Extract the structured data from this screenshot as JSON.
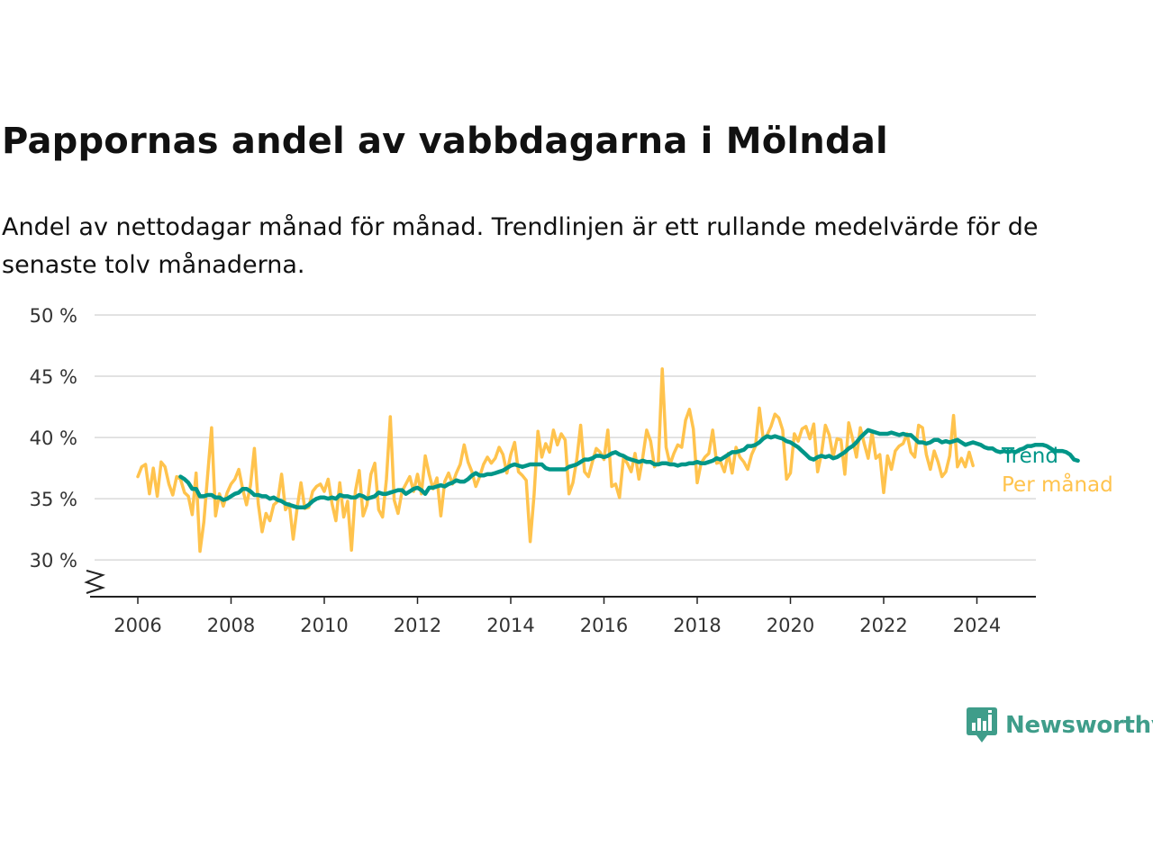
{
  "title": "Pappornas andel av vabbdagarna i Mölndal",
  "subtitle": "Andel av nettodagar månad för månad. Trendlinjen är ett rullande medelvärde för de senaste tolv månaderna.",
  "brand": {
    "name": "Newsworthy",
    "color": "#3f9d8a"
  },
  "chart_data": {
    "type": "line",
    "ylim": [
      27,
      50
    ],
    "xlim": [
      "2005-07",
      "2025-01"
    ],
    "y_ticks": [
      {
        "value": 30,
        "label": "30 %"
      },
      {
        "value": 35,
        "label": "35 %"
      },
      {
        "value": 40,
        "label": "40 %"
      },
      {
        "value": 45,
        "label": "45 %"
      },
      {
        "value": 50,
        "label": "50 %"
      }
    ],
    "x_ticks": [
      "2006",
      "2008",
      "2010",
      "2012",
      "2014",
      "2016",
      "2018",
      "2020",
      "2022",
      "2024"
    ],
    "grid": true,
    "axis_break": true,
    "legend": "direct-labels-right",
    "series": [
      {
        "name": "Per månad",
        "color": "#ffc34d",
        "start": "2006-01",
        "values": [
          36.8,
          37.6,
          37.8,
          35.4,
          37.5,
          35.2,
          38.0,
          37.6,
          36.2,
          35.3,
          36.8,
          36.6,
          35.5,
          35.2,
          33.7,
          37.1,
          30.7,
          33.1,
          37.0,
          40.8,
          33.6,
          35.4,
          34.4,
          35.5,
          36.2,
          36.6,
          37.4,
          35.8,
          34.5,
          36.1,
          39.1,
          34.6,
          32.3,
          33.8,
          33.2,
          34.5,
          34.8,
          37.0,
          34.1,
          34.6,
          31.7,
          34.2,
          36.3,
          34.2,
          34.3,
          35.6,
          36.0,
          36.2,
          35.6,
          36.6,
          34.6,
          33.2,
          36.3,
          33.5,
          34.8,
          30.8,
          35.6,
          37.3,
          33.6,
          34.5,
          37.0,
          37.9,
          34.1,
          33.5,
          36.6,
          41.7,
          34.9,
          33.8,
          35.6,
          36.2,
          36.8,
          35.6,
          37.0,
          35.4,
          38.5,
          37.0,
          35.8,
          36.7,
          33.6,
          36.4,
          37.1,
          36.2,
          37.1,
          37.8,
          39.4,
          38.0,
          37.2,
          36.0,
          36.8,
          37.8,
          38.4,
          37.9,
          38.3,
          39.2,
          38.6,
          37.1,
          38.6,
          39.6,
          37.2,
          36.9,
          36.5,
          31.5,
          35.3,
          40.5,
          38.4,
          39.5,
          38.8,
          40.6,
          39.4,
          40.3,
          39.8,
          35.4,
          36.3,
          38.2,
          41.0,
          37.2,
          36.8,
          38.0,
          39.1,
          38.8,
          38.2,
          40.6,
          36.0,
          36.2,
          35.1,
          38.3,
          37.9,
          37.2,
          38.7,
          36.6,
          38.4,
          40.6,
          39.7,
          37.6,
          38.0,
          45.6,
          39.2,
          37.8,
          38.7,
          39.4,
          39.2,
          41.4,
          42.3,
          40.7,
          36.3,
          37.9,
          38.4,
          38.7,
          40.6,
          37.9,
          38.0,
          37.2,
          38.7,
          37.1,
          39.2,
          38.4,
          38.0,
          37.4,
          38.6,
          39.3,
          42.4,
          39.9,
          40.2,
          40.9,
          41.9,
          41.6,
          40.6,
          36.6,
          37.1,
          40.3,
          39.7,
          40.7,
          40.9,
          39.9,
          41.1,
          37.2,
          38.7,
          41.0,
          40.2,
          38.4,
          39.9,
          39.8,
          37.0,
          41.2,
          39.9,
          38.4,
          40.8,
          39.5,
          38.3,
          40.4,
          38.3,
          38.6,
          35.5,
          38.5,
          37.4,
          38.9,
          39.3,
          39.5,
          40.3,
          38.8,
          38.4,
          41.0,
          40.8,
          38.6,
          37.4,
          38.9,
          38.0,
          36.8,
          37.2,
          38.5,
          41.8,
          37.6,
          38.3,
          37.6,
          38.8,
          37.7
        ]
      },
      {
        "name": "Trend",
        "color": "#009688",
        "start": "2006-12",
        "values": [
          36.8,
          36.6,
          36.3,
          35.8,
          35.8,
          35.2,
          35.2,
          35.3,
          35.3,
          35.1,
          35.1,
          34.9,
          35.0,
          35.2,
          35.4,
          35.5,
          35.8,
          35.8,
          35.6,
          35.3,
          35.3,
          35.2,
          35.2,
          35.0,
          35.1,
          34.9,
          34.8,
          34.6,
          34.5,
          34.4,
          34.3,
          34.3,
          34.3,
          34.5,
          34.8,
          35.0,
          35.1,
          35.1,
          35.0,
          35.1,
          35.0,
          35.3,
          35.2,
          35.2,
          35.1,
          35.1,
          35.3,
          35.2,
          35.0,
          35.1,
          35.2,
          35.5,
          35.4,
          35.4,
          35.5,
          35.6,
          35.7,
          35.7,
          35.4,
          35.6,
          35.8,
          35.9,
          35.7,
          35.4,
          35.9,
          35.9,
          36.0,
          36.1,
          36.0,
          36.2,
          36.3,
          36.5,
          36.4,
          36.4,
          36.6,
          36.9,
          37.1,
          36.9,
          36.9,
          37.0,
          37.0,
          37.1,
          37.2,
          37.3,
          37.5,
          37.7,
          37.8,
          37.7,
          37.6,
          37.7,
          37.8,
          37.8,
          37.8,
          37.8,
          37.5,
          37.4,
          37.4,
          37.4,
          37.4,
          37.4,
          37.6,
          37.7,
          37.8,
          38.0,
          38.2,
          38.2,
          38.3,
          38.5,
          38.5,
          38.4,
          38.5,
          38.7,
          38.8,
          38.6,
          38.5,
          38.3,
          38.2,
          38.1,
          38.0,
          38.1,
          38.0,
          38.0,
          37.8,
          37.8,
          37.9,
          37.9,
          37.8,
          37.8,
          37.7,
          37.8,
          37.8,
          37.9,
          37.9,
          38.0,
          37.9,
          37.9,
          38.0,
          38.1,
          38.3,
          38.2,
          38.4,
          38.6,
          38.8,
          38.8,
          38.9,
          39.0,
          39.3,
          39.3,
          39.4,
          39.6,
          39.9,
          40.1,
          40.0,
          40.1,
          40.0,
          39.9,
          39.7,
          39.6,
          39.4,
          39.2,
          38.9,
          38.6,
          38.3,
          38.2,
          38.4,
          38.5,
          38.4,
          38.5,
          38.3,
          38.4,
          38.6,
          38.8,
          39.1,
          39.3,
          39.6,
          40.0,
          40.3,
          40.6,
          40.5,
          40.4,
          40.3,
          40.3,
          40.3,
          40.4,
          40.3,
          40.2,
          40.3,
          40.2,
          40.2,
          39.9,
          39.6,
          39.6,
          39.5,
          39.6,
          39.8,
          39.8,
          39.6,
          39.7,
          39.6,
          39.7,
          39.8,
          39.6,
          39.4,
          39.5,
          39.6,
          39.5,
          39.4,
          39.2,
          39.1,
          39.1,
          38.9,
          38.8,
          38.9,
          38.8,
          38.9,
          38.8,
          39.0,
          39.1,
          39.3,
          39.3,
          39.4,
          39.4,
          39.4,
          39.3,
          39.1,
          38.9,
          38.9,
          38.9,
          38.8,
          38.6,
          38.2,
          38.1
        ]
      }
    ]
  }
}
